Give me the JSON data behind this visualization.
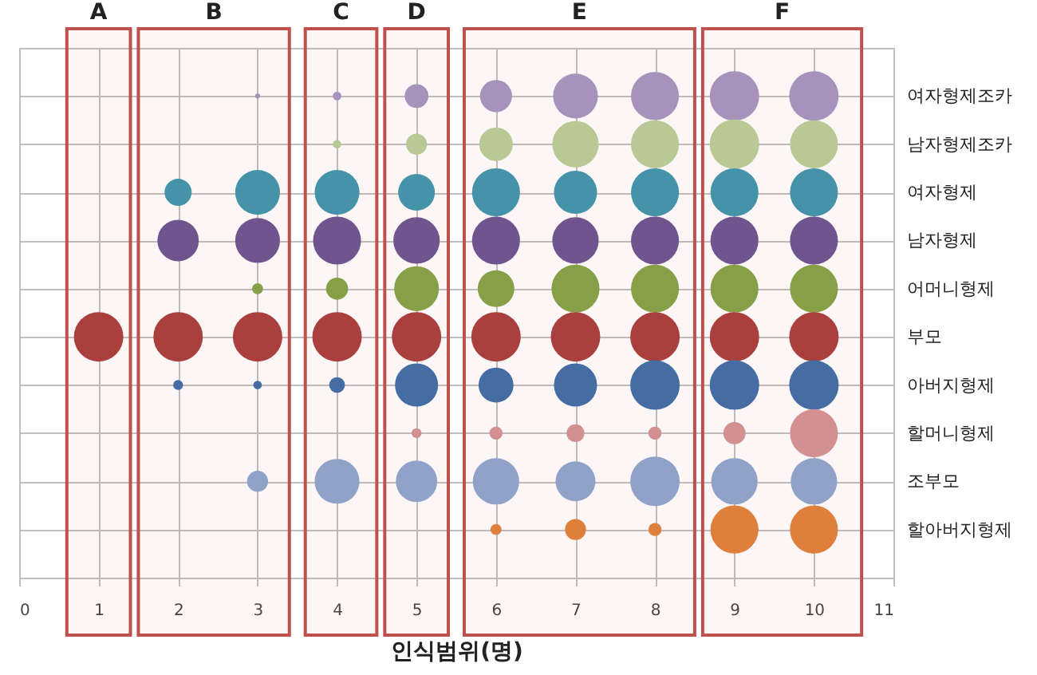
{
  "chart_data": {
    "type": "bubble",
    "orientation": "horizontal",
    "xlabel": "인식범위(명)",
    "xlim": [
      0,
      11
    ],
    "xticks": [
      0,
      1,
      2,
      3,
      4,
      5,
      6,
      7,
      8,
      9,
      10,
      11
    ],
    "categories": [
      "여자형제조카",
      "남자형제조카",
      "여자형제",
      "남자형제",
      "어머니형제",
      "부모",
      "아버지형제",
      "할머니형제",
      "조부모",
      "할아버지형제"
    ],
    "grid": true,
    "series": [
      {
        "colors": [
          null,
          null,
          null,
          null,
          null,
          "#a8403e",
          null,
          null,
          null,
          null
        ],
        "values": [
          null,
          null,
          null,
          null,
          null,
          1,
          null,
          null,
          null,
          null
        ],
        "sizes": [
          null,
          null,
          null,
          null,
          null,
          1,
          null,
          null,
          null,
          null
        ]
      },
      {
        "colors": [
          null,
          null,
          "#3f97ae",
          "#6b5592",
          null,
          "#a8403e",
          "#3f6ea8",
          null,
          null,
          null
        ],
        "values": [
          null,
          null,
          2,
          2,
          null,
          2,
          2,
          null,
          null,
          null
        ],
        "sizes": [
          null,
          null,
          0.3,
          0.7,
          null,
          1,
          0.04,
          null,
          null,
          null
        ]
      },
      {
        "colors": [
          "#a596c0",
          null,
          "#3f97ae",
          "#6b5592",
          "#84a446",
          "#a8403e",
          "#3f6ea8",
          null,
          "#8fa7d0",
          null
        ],
        "values": [
          3,
          null,
          3,
          3,
          3,
          3,
          3,
          null,
          3,
          null
        ],
        "sizes": [
          0.01,
          null,
          0.82,
          0.82,
          0.05,
          1,
          0.03,
          null,
          0.18,
          null
        ]
      },
      {
        "colors": [
          "#a596c0",
          "#b8d09a",
          "#3f97ae",
          "#6b5592",
          "#84a446",
          "#a8403e",
          "#3f6ea8",
          null,
          "#8fa7d0",
          null
        ],
        "values": [
          4,
          4,
          4,
          4,
          4,
          4,
          4,
          null,
          4,
          null
        ],
        "sizes": [
          0.03,
          0.03,
          0.82,
          0.94,
          0.2,
          1,
          0.1,
          null,
          0.82,
          null
        ]
      },
      {
        "colors": [
          "#a596c0",
          "#b8d09a",
          "#3f97ae",
          "#6b5592",
          "#84a446",
          "#a8403e",
          "#3f6ea8",
          "#d39494",
          "#8fa7d0",
          null
        ],
        "values": [
          5,
          5,
          5,
          5,
          5,
          5,
          5,
          5,
          5,
          null
        ],
        "sizes": [
          0.23,
          0.18,
          0.55,
          0.88,
          0.82,
          1,
          0.76,
          0.04,
          0.7,
          null
        ]
      },
      {
        "colors": [
          "#a596c0",
          "#b8d09a",
          "#3f97ae",
          "#6b5592",
          "#84a446",
          "#a8403e",
          "#3f6ea8",
          "#d39494",
          "#8fa7d0",
          "#e0823a"
        ],
        "values": [
          6,
          6,
          6,
          6,
          6,
          6,
          6,
          6,
          6,
          6
        ],
        "sizes": [
          0.42,
          0.46,
          0.94,
          0.94,
          0.55,
          1,
          0.5,
          0.07,
          0.88,
          0.05
        ]
      },
      {
        "colors": [
          "#a596c0",
          "#b8d09a",
          "#3f97ae",
          "#6b5592",
          "#84a446",
          "#a8403e",
          "#3f6ea8",
          "#d39494",
          "#8fa7d0",
          "#e0823a"
        ],
        "values": [
          7,
          7,
          7,
          7,
          7,
          7,
          7,
          7,
          7,
          7
        ],
        "sizes": [
          0.82,
          0.88,
          0.76,
          0.88,
          0.94,
          1,
          0.76,
          0.13,
          0.65,
          0.18
        ]
      },
      {
        "colors": [
          "#a596c0",
          "#b8d09a",
          "#3f97ae",
          "#6b5592",
          "#84a446",
          "#a8403e",
          "#3f6ea8",
          "#d39494",
          "#8fa7d0",
          "#e0823a"
        ],
        "values": [
          8,
          8,
          8,
          8,
          8,
          8,
          8,
          8,
          8,
          8
        ],
        "sizes": [
          0.94,
          0.94,
          0.94,
          0.94,
          0.94,
          1,
          1,
          0.07,
          1,
          0.07
        ]
      },
      {
        "colors": [
          "#a596c0",
          "#b8d09a",
          "#3f97ae",
          "#6b5592",
          "#84a446",
          "#a8403e",
          "#3f6ea8",
          "#d39494",
          "#8fa7d0",
          "#e0823a"
        ],
        "values": [
          9,
          9,
          9,
          9,
          9,
          9,
          9,
          9,
          9,
          9
        ],
        "sizes": [
          1,
          1,
          0.94,
          0.94,
          0.94,
          1,
          1,
          0.2,
          0.88,
          0.94
        ]
      },
      {
        "colors": [
          "#a596c0",
          "#b8d09a",
          "#3f97ae",
          "#6b5592",
          "#84a446",
          "#a8403e",
          "#3f6ea8",
          "#d39494",
          "#8fa7d0",
          "#e0823a"
        ],
        "values": [
          10,
          10,
          10,
          10,
          10,
          10,
          10,
          10,
          10,
          10
        ],
        "sizes": [
          1,
          0.94,
          0.94,
          0.94,
          0.94,
          1,
          1,
          0.94,
          0.88,
          0.94
        ]
      }
    ],
    "bands": [
      {
        "axis": "x",
        "from": 0.6,
        "to": 1.4,
        "label": "A",
        "color": "#c0504d"
      },
      {
        "axis": "x",
        "from": 1.5,
        "to": 3.4,
        "label": "B",
        "color": "#c0504d"
      },
      {
        "axis": "x",
        "from": 3.6,
        "to": 4.5,
        "label": "C",
        "color": "#c0504d"
      },
      {
        "axis": "x",
        "from": 4.6,
        "to": 5.4,
        "label": "D",
        "color": "#c0504d"
      },
      {
        "axis": "x",
        "from": 5.6,
        "to": 8.5,
        "label": "E",
        "color": "#c0504d"
      },
      {
        "axis": "x",
        "from": 8.6,
        "to": 10.6,
        "label": "F",
        "color": "#c0504d"
      }
    ]
  }
}
